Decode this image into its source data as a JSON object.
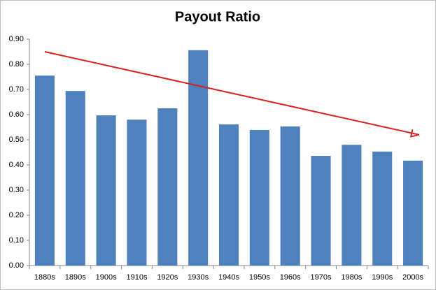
{
  "chart_data": {
    "type": "bar",
    "title": "Payout Ratio",
    "categories": [
      "1880s",
      "1890s",
      "1900s",
      "1910s",
      "1920s",
      "1930s",
      "1940s",
      "1950s",
      "1960s",
      "1970s",
      "1980s",
      "1990s",
      "2000s"
    ],
    "values": [
      0.755,
      0.694,
      0.597,
      0.58,
      0.625,
      0.856,
      0.561,
      0.539,
      0.553,
      0.436,
      0.48,
      0.453,
      0.417
    ],
    "color": "#4f81bd",
    "ylim": [
      0,
      0.9
    ],
    "yticks": [
      {
        "value": 0,
        "label": "0.00"
      },
      {
        "value": 0.1,
        "label": "0.10"
      },
      {
        "value": 0.2,
        "label": "0.20"
      },
      {
        "value": 0.3,
        "label": "0.30"
      },
      {
        "value": 0.4,
        "label": "0.40"
      },
      {
        "value": 0.5,
        "label": "0.50"
      },
      {
        "value": 0.6,
        "label": "0.60"
      },
      {
        "value": 0.7,
        "label": "0.70"
      },
      {
        "value": 0.8,
        "label": "0.80"
      },
      {
        "value": 0.9,
        "label": "0.90"
      }
    ],
    "grid": false,
    "arrow": {
      "color": "#d92020",
      "start": 0.85,
      "end": 0.52
    }
  }
}
